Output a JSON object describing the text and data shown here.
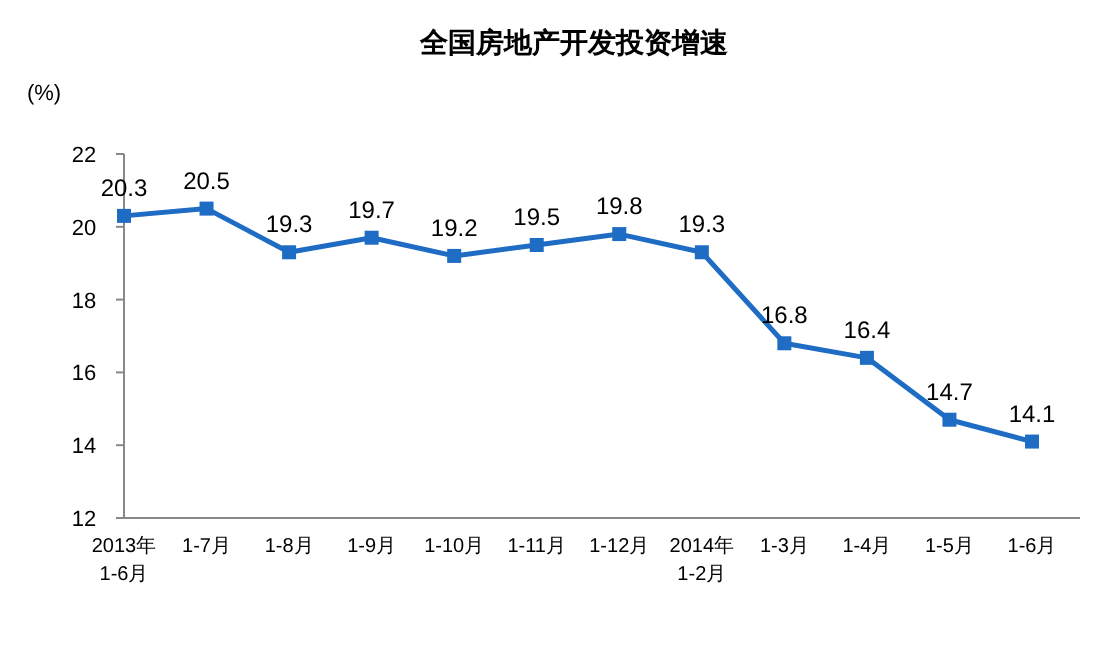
{
  "chart_data": {
    "type": "line",
    "title": "全国房地产开发投资增速",
    "ylabel": "(%)",
    "categories": [
      "2013年\n1-6月",
      "1-7月",
      "1-8月",
      "1-9月",
      "1-10月",
      "1-11月",
      "1-12月",
      "2014年\n1-2月",
      "1-3月",
      "1-4月",
      "1-5月",
      "1-6月"
    ],
    "series": [
      {
        "color": "#1f6cc4",
        "values": [
          20.3,
          20.5,
          19.3,
          19.7,
          19.2,
          19.5,
          19.8,
          19.3,
          16.8,
          16.4,
          14.7,
          14.1
        ]
      }
    ],
    "ylim": [
      12,
      22
    ],
    "yticks": [
      12,
      14,
      16,
      18,
      20,
      22
    ],
    "data_labels": true,
    "marker": "square",
    "line_style": "solid",
    "grid": false
  }
}
